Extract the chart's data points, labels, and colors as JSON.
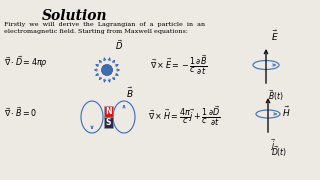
{
  "bg_color": "#ede9e3",
  "title": "Solution",
  "intro_line1": "Firstly  we  will  derive  the  Lagrangian  of  a  particle  in  an",
  "intro_line2": "electromagnetic field. Starting from Maxwell equations:",
  "figw": 3.2,
  "figh": 1.8,
  "dpi": 100
}
